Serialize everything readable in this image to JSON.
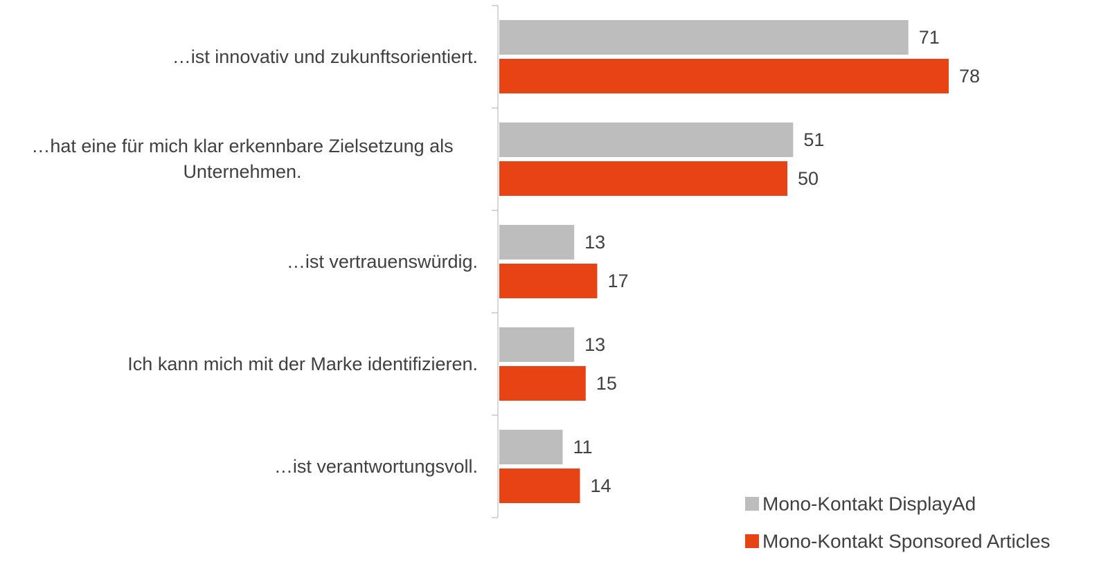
{
  "chart_data": {
    "type": "bar",
    "orientation": "horizontal",
    "categories": [
      "…ist innovativ und zukunftsorientiert.",
      "…hat eine für mich klar erkennbare Zielsetzung als Unternehmen.",
      "…ist vertrauenswürdig.",
      "Ich kann mich mit der Marke identifizieren.",
      "…ist verantwortungsvoll."
    ],
    "series": [
      {
        "name": "Mono-Kontakt DisplayAd",
        "color": "#bdbdbd",
        "values": [
          71,
          51,
          13,
          13,
          11
        ]
      },
      {
        "name": "Mono-Kontakt Sponsored Articles",
        "color": "#e84315",
        "values": [
          78,
          50,
          17,
          15,
          14
        ]
      }
    ],
    "legend": "bottom-right"
  }
}
